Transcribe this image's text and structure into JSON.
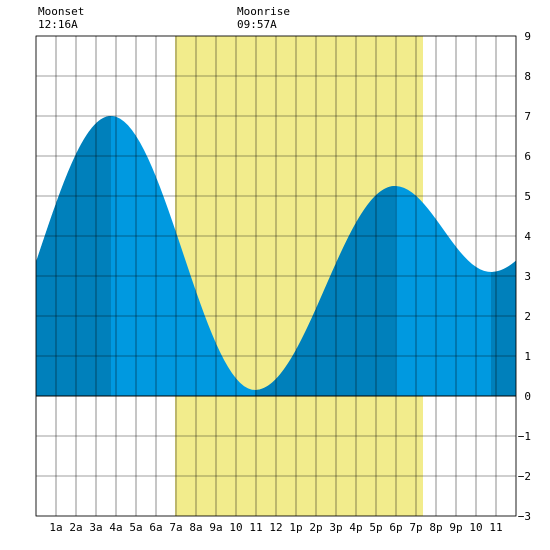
{
  "chart_data": {
    "type": "area",
    "title": "",
    "xlabel": "",
    "ylabel": "",
    "xlim": [
      -1,
      23
    ],
    "ylim": [
      -3,
      9
    ],
    "y_ticks": [
      -3,
      -2,
      -1,
      0,
      1,
      2,
      3,
      4,
      5,
      6,
      7,
      8,
      9
    ],
    "x_ticks": [
      {
        "x": 0,
        "label": "1a"
      },
      {
        "x": 1,
        "label": "2a"
      },
      {
        "x": 2,
        "label": "3a"
      },
      {
        "x": 3,
        "label": "4a"
      },
      {
        "x": 4,
        "label": "5a"
      },
      {
        "x": 5,
        "label": "6a"
      },
      {
        "x": 6,
        "label": "7a"
      },
      {
        "x": 7,
        "label": "8a"
      },
      {
        "x": 8,
        "label": "9a"
      },
      {
        "x": 9,
        "label": "10"
      },
      {
        "x": 10,
        "label": "11"
      },
      {
        "x": 11,
        "label": "12"
      },
      {
        "x": 12,
        "label": "1p"
      },
      {
        "x": 13,
        "label": "2p"
      },
      {
        "x": 14,
        "label": "3p"
      },
      {
        "x": 15,
        "label": "4p"
      },
      {
        "x": 16,
        "label": "5p"
      },
      {
        "x": 17,
        "label": "6p"
      },
      {
        "x": 18,
        "label": "7p"
      },
      {
        "x": 19,
        "label": "8p"
      },
      {
        "x": 20,
        "label": "9p"
      },
      {
        "x": 21,
        "label": "10"
      },
      {
        "x": 22,
        "label": "11"
      }
    ],
    "grid": true,
    "daylight": {
      "start": 5.95,
      "end": 18.35,
      "color": "#f2ec8c"
    },
    "tide_extremes": [
      {
        "x": 2.75,
        "y": 7.0
      },
      {
        "x": 9.95,
        "y": 0.15
      },
      {
        "x": 16.95,
        "y": 5.25
      },
      {
        "x": 21.75,
        "y": 3.1
      }
    ],
    "start_value": {
      "x": -1,
      "y": 3.9
    },
    "end_value": {
      "x": 23,
      "y": 3.5
    },
    "dark_bands": [
      {
        "from": -1,
        "to": 2.75
      },
      {
        "from": 9.95,
        "to": 16.95
      },
      {
        "from": 21.75,
        "to": 23
      }
    ],
    "colors": {
      "tide_light": "#0099e0",
      "tide_dark": "#0080bb",
      "grid": "#000000"
    },
    "annotations": {
      "moonset": {
        "title": "Moonset",
        "time": "12:16A",
        "x": -1
      },
      "moonrise": {
        "title": "Moonrise",
        "time": "09:57A",
        "x": 8.95
      }
    }
  }
}
